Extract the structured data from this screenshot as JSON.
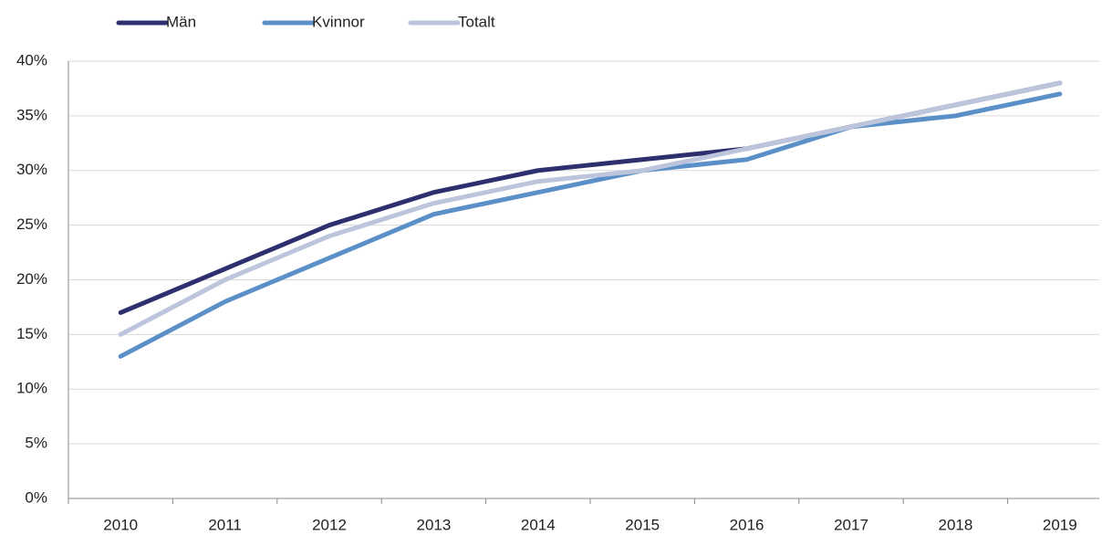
{
  "chart_data": {
    "type": "line",
    "categories": [
      "2010",
      "2011",
      "2012",
      "2013",
      "2014",
      "2015",
      "2016",
      "2017",
      "2018",
      "2019"
    ],
    "series": [
      {
        "name": "Män",
        "color": "#2e2f6e",
        "values": [
          17,
          21,
          25,
          28,
          30,
          31,
          32,
          34,
          36,
          38
        ]
      },
      {
        "name": "Kvinnor",
        "color": "#5b8fc7",
        "values": [
          13,
          18,
          22,
          26,
          28,
          30,
          31,
          34,
          35,
          37
        ]
      },
      {
        "name": "Totalt",
        "color": "#bcc5dc",
        "values": [
          15,
          20,
          24,
          27,
          29,
          30,
          32,
          34,
          36,
          38
        ]
      }
    ],
    "ylim": [
      0,
      40
    ],
    "yticks": [
      {
        "value": 0,
        "label": "0%"
      },
      {
        "value": 5,
        "label": "5%"
      },
      {
        "value": 10,
        "label": "10%"
      },
      {
        "value": 15,
        "label": "15%"
      },
      {
        "value": 20,
        "label": "20%"
      },
      {
        "value": 25,
        "label": "25%"
      },
      {
        "value": 30,
        "label": "30%"
      },
      {
        "value": 35,
        "label": "35%"
      },
      {
        "value": 40,
        "label": "40%"
      }
    ],
    "grid": true,
    "legend": "top"
  }
}
